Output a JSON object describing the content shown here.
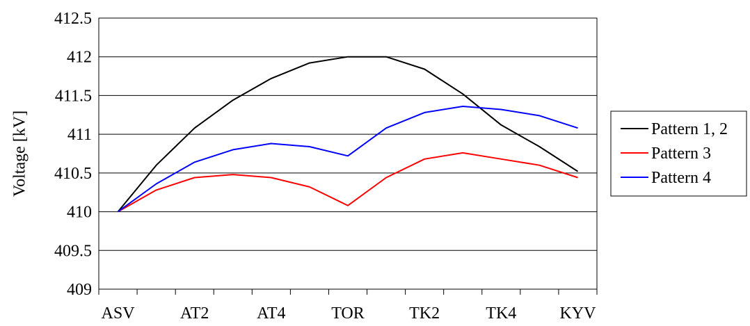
{
  "chart_data": {
    "type": "line",
    "title": "",
    "xlabel": "",
    "ylabel": "Voltage [kV]",
    "ylim": [
      409,
      412.5
    ],
    "ytick_step": 0.5,
    "grid": true,
    "legend_placement": "right",
    "x_tick_labels": [
      "ASV",
      "",
      "AT2",
      "",
      "AT4",
      "",
      "TOR",
      "",
      "TK2",
      "",
      "TK4",
      "",
      "KYV"
    ],
    "series": [
      {
        "name": "Pattern 1, 2",
        "color": "#000000",
        "values": [
          410.0,
          410.6,
          411.08,
          411.44,
          411.72,
          411.92,
          412.0,
          412.0,
          411.84,
          411.52,
          411.12,
          410.84,
          410.52
        ]
      },
      {
        "name": "Pattern 3",
        "color": "#ff0000",
        "values": [
          410.0,
          410.28,
          410.44,
          410.48,
          410.44,
          410.32,
          410.08,
          410.44,
          410.68,
          410.76,
          410.68,
          410.6,
          410.44
        ]
      },
      {
        "name": "Pattern 4",
        "color": "#0000ff",
        "values": [
          410.0,
          410.36,
          410.64,
          410.8,
          410.88,
          410.84,
          410.72,
          411.08,
          411.28,
          411.36,
          411.32,
          411.24,
          411.08
        ]
      }
    ]
  }
}
